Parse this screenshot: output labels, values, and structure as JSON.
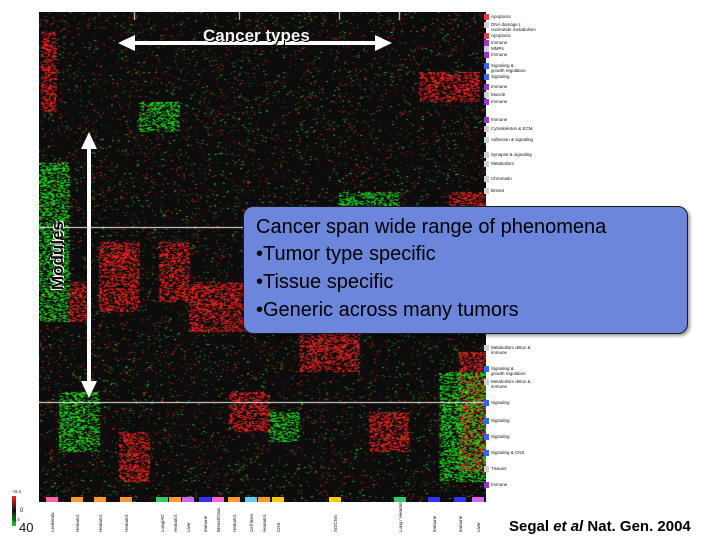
{
  "overlay": {
    "cancer_types_title": "Cancer types",
    "modules_title": "Modules",
    "callout_title": "Cancer span wide range of phenomena",
    "callout_bullets": [
      "•Tumor type specific",
      "•Tissue specific",
      "•Generic across many tumors"
    ],
    "citation_author": "Segal",
    "citation_etal": "et al",
    "citation_rest": "Nat. Gen. 2004"
  },
  "module_labels": [
    {
      "text": "Apoptosis",
      "color": "#e04040"
    },
    {
      "text": "DNA damage (\nnucleotide metabolism",
      "color": "#d0d0d0"
    },
    {
      "text": "Apoptosis",
      "color": "#e04040"
    },
    {
      "text": "Immune",
      "color": "#9933cc"
    },
    {
      "text": "MMPs",
      "color": "#d0d0d0"
    },
    {
      "text": "Immune",
      "color": "#9933cc"
    },
    {
      "text": "Signaling &\ngrowth regulation",
      "color": "#3366ff"
    },
    {
      "text": "Signaling",
      "color": "#3366ff"
    },
    {
      "text": "Immune",
      "color": "#9933cc"
    },
    {
      "text": "Muscle",
      "color": "#d0d0d0"
    },
    {
      "text": "Immune",
      "color": "#9933cc"
    },
    {
      "text": "Immune",
      "color": "#9933cc"
    },
    {
      "text": "Cytoskeleton & ECM",
      "color": "#d0d0d0"
    },
    {
      "text": "Adhesion & signaling",
      "color": "#d0d0d0"
    },
    {
      "text": "Synapse & signaling",
      "color": "#d0d0d0"
    },
    {
      "text": "Metabolism",
      "color": "#d0d0d0"
    },
    {
      "text": "Chromatin",
      "color": "#d0d0d0"
    },
    {
      "text": "Breast",
      "color": "#d0d0d0"
    },
    {
      "text": "Metabolism detox &\nimmune",
      "color": "#d0d0d0"
    },
    {
      "text": "Signaling &\ngrowth regulation",
      "color": "#3366ff"
    },
    {
      "text": "Metabolism detox &\nimmune",
      "color": "#d0d0d0"
    },
    {
      "text": "Signaling",
      "color": "#3366ff"
    },
    {
      "text": "Signaling",
      "color": "#3366ff"
    },
    {
      "text": "Signaling",
      "color": "#3366ff"
    },
    {
      "text": "Signaling & CNS",
      "color": "#3366ff"
    },
    {
      "text": "Tissues",
      "color": "#d0d0d0"
    },
    {
      "text": "Immune",
      "color": "#9933cc"
    }
  ],
  "cancer_labels": [
    {
      "text": "Leukemia",
      "color": "#ff66aa"
    },
    {
      "text": "Hematol.",
      "color": "#ff9933"
    },
    {
      "text": "Hematol.",
      "color": "#ff9933"
    },
    {
      "text": "Hematol.",
      "color": "#ff9933"
    },
    {
      "text": "Lung/AD",
      "color": "#33cc66"
    },
    {
      "text": "Hematol.",
      "color": "#ff9933"
    },
    {
      "text": "Liver",
      "color": "#cc66ff"
    },
    {
      "text": "Immune",
      "color": "#3333ff"
    },
    {
      "text": "Breast/Ovar.",
      "color": "#ff66cc"
    },
    {
      "text": "Hematol.",
      "color": "#ff9933"
    },
    {
      "text": "Cell lines",
      "color": "#66ccff"
    },
    {
      "text": "Hematol.",
      "color": "#ff9933"
    },
    {
      "text": "CNS",
      "color": "#ffcc00"
    },
    {
      "text": "AD/CNS",
      "color": "#ffcc00"
    },
    {
      "text": "Lung /\nHematol.",
      "color": "#33cc66"
    },
    {
      "text": "Immune",
      "color": "#3333ff"
    },
    {
      "text": "Immune",
      "color": "#3333ff"
    },
    {
      "text": "Liver",
      "color": "#cc66ff"
    }
  ],
  "scale": {
    "top": "+0.4",
    "mid": "0",
    "bottom_small": "-0.4",
    "bottom_big": "40"
  }
}
